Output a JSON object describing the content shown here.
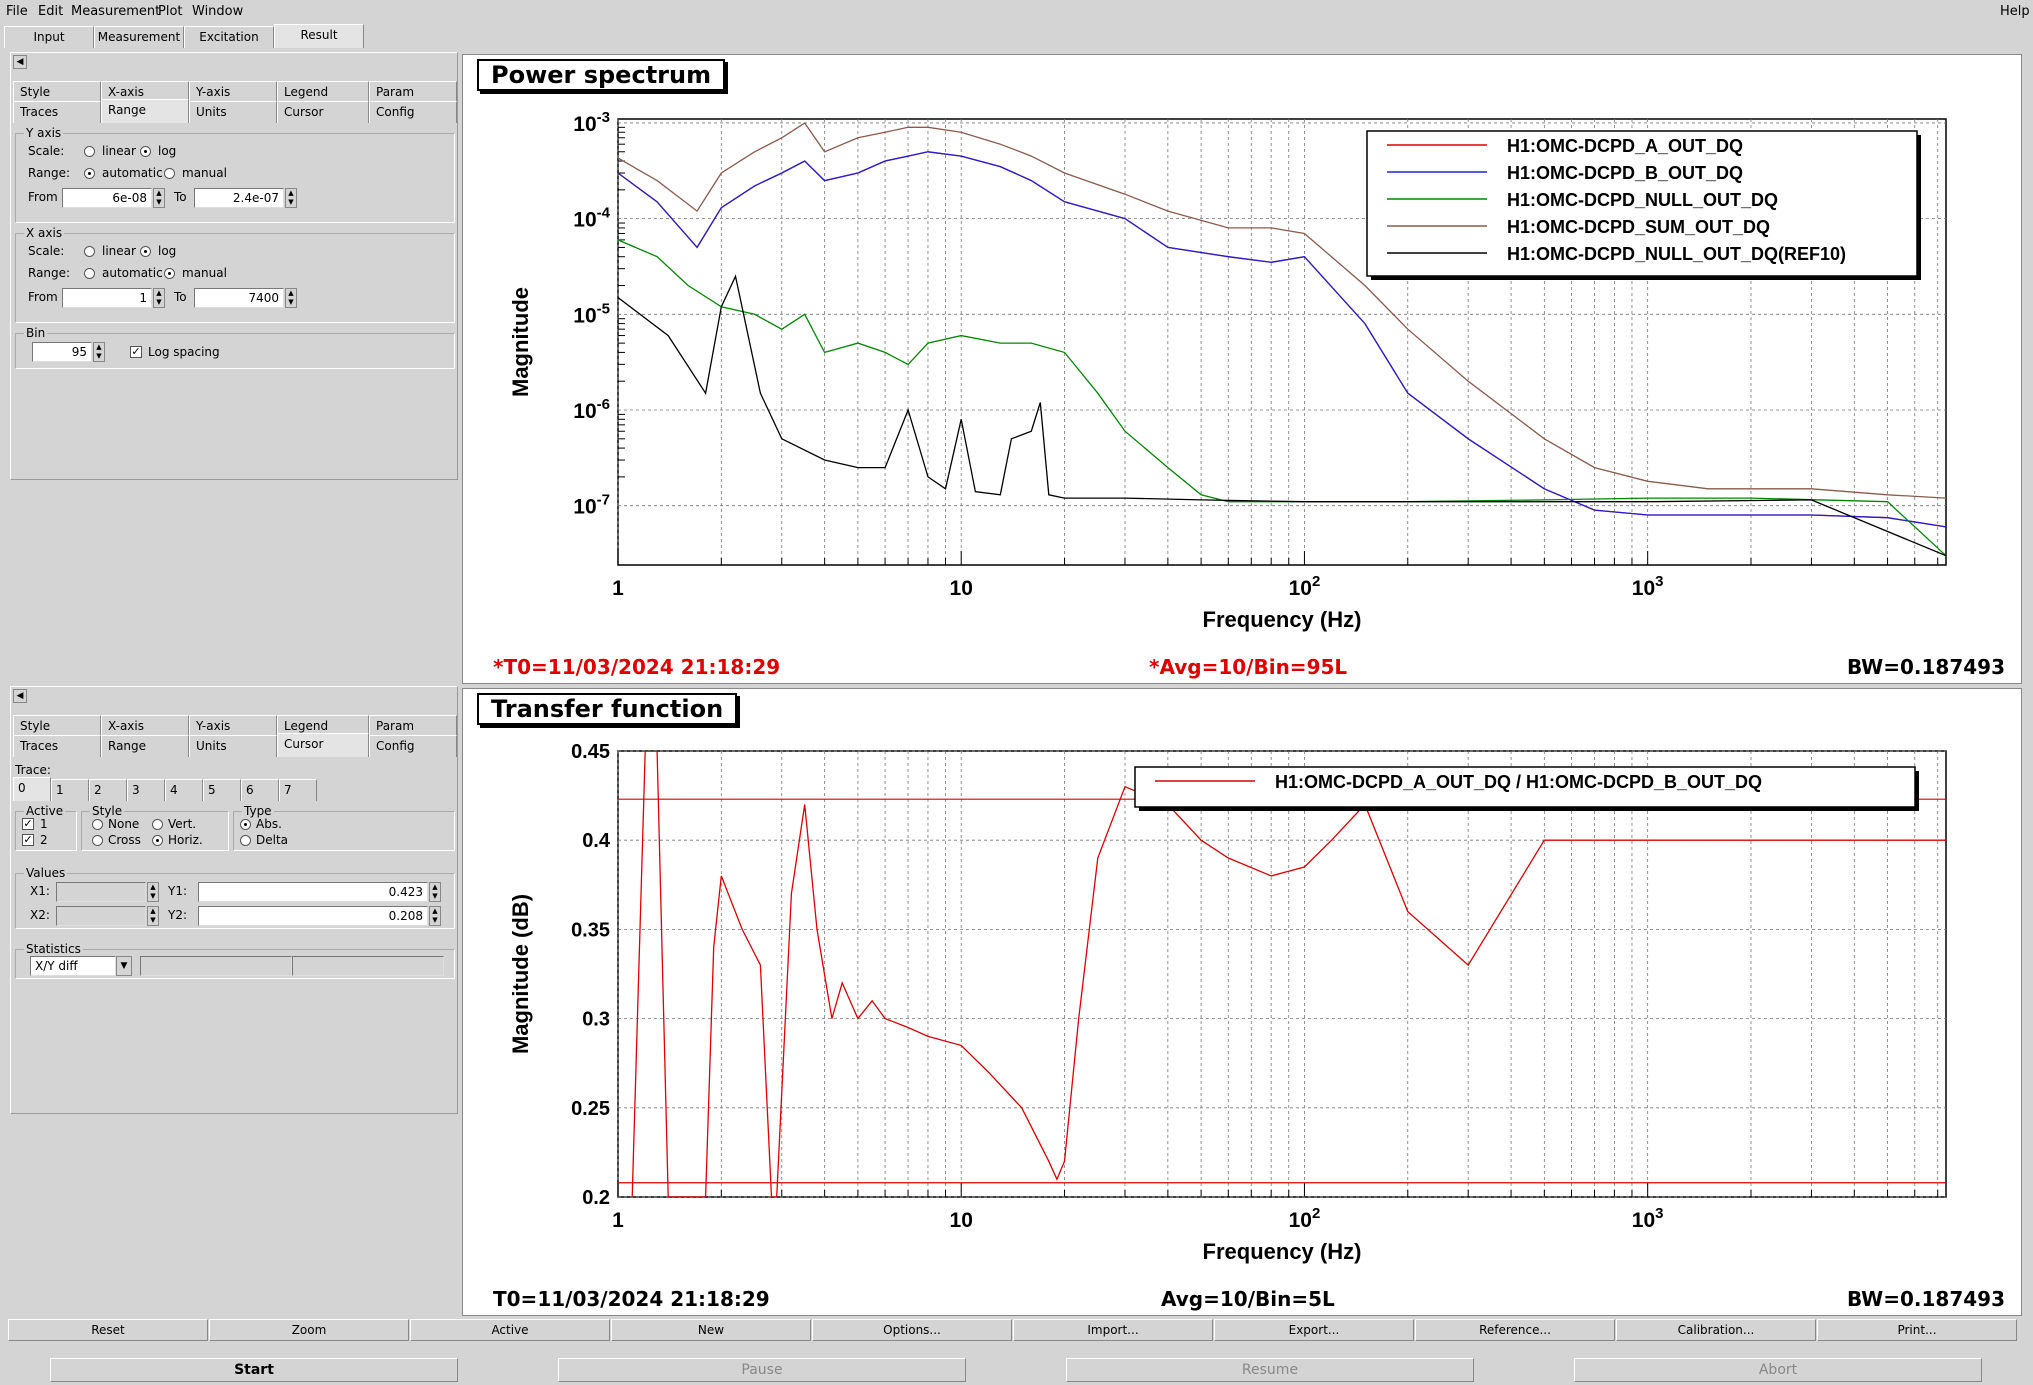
{
  "menu": [
    "File",
    "Edit",
    "Measurement",
    "Plot",
    "Window",
    "Help"
  ],
  "main_tabs": [
    "Input",
    "Measurement",
    "Excitation",
    "Result"
  ],
  "option_tabs_row1": [
    "Style",
    "X-axis",
    "Y-axis",
    "Legend",
    "Param"
  ],
  "option_tabs_row2": [
    "Traces",
    "Range",
    "Units",
    "Cursor",
    "Config"
  ],
  "range_panel": {
    "y_axis": {
      "title": "Y axis",
      "scale_label": "Scale:",
      "linear": "linear",
      "log": "log",
      "range_label": "Range:",
      "automatic": "automatic",
      "manual": "manual",
      "from_label": "From",
      "from": "6e-08",
      "to_label": "To",
      "to": "2.4e-07"
    },
    "x_axis": {
      "title": "X axis",
      "scale_label": "Scale:",
      "linear": "linear",
      "log": "log",
      "range_label": "Range:",
      "automatic": "automatic",
      "manual": "manual",
      "from_label": "From",
      "from": "1",
      "to_label": "To",
      "to": "7400"
    },
    "bin": {
      "title": "Bin",
      "value": "95",
      "log_spacing": "Log spacing"
    }
  },
  "cursor_panel": {
    "trace_label": "Trace:",
    "trace_tabs": [
      "0",
      "1",
      "2",
      "3",
      "4",
      "5",
      "6",
      "7"
    ],
    "active_title": "Active",
    "active_1": "1",
    "active_2": "2",
    "style_title": "Style",
    "style_none": "None",
    "style_vert": "Vert.",
    "style_cross": "Cross",
    "style_horiz": "Horiz.",
    "type_title": "Type",
    "type_abs": "Abs.",
    "type_delta": "Delta",
    "values_title": "Values",
    "x1_label": "X1:",
    "y1_label": "Y1:",
    "y1": "0.423",
    "x2_label": "X2:",
    "y2_label": "Y2:",
    "y2": "0.208",
    "stats_title": "Statistics",
    "stats_select": "X/Y diff"
  },
  "plot1": {
    "title": "Power spectrum",
    "t0": "*T0=11/03/2024 21:18:29",
    "avg": "*Avg=10/Bin=95L",
    "bw": "BW=0.187493",
    "legend": [
      {
        "name": "H1:OMC-DCPD_A_OUT_DQ",
        "color": "#e00000"
      },
      {
        "name": "H1:OMC-DCPD_B_OUT_DQ",
        "color": "#2020e0"
      },
      {
        "name": "H1:OMC-DCPD_NULL_OUT_DQ",
        "color": "#008800"
      },
      {
        "name": "H1:OMC-DCPD_SUM_OUT_DQ",
        "color": "#8b5a4a"
      },
      {
        "name": "H1:OMC-DCPD_NULL_OUT_DQ(REF10)",
        "color": "#000000"
      }
    ]
  },
  "plot2": {
    "title": "Transfer function",
    "t0": "T0=11/03/2024 21:18:29",
    "avg": "Avg=10/Bin=5L",
    "bw": "BW=0.187493",
    "legend": [
      {
        "name": "H1:OMC-DCPD_A_OUT_DQ / H1:OMC-DCPD_B_OUT_DQ",
        "color": "#e00000"
      }
    ]
  },
  "chart_data": [
    {
      "type": "line",
      "title": "Power spectrum",
      "xlabel": "Frequency (Hz)",
      "ylabel": "Magnitude",
      "xscale": "log",
      "yscale": "log",
      "xlim": [
        1,
        7400
      ],
      "ylim": [
        2.4e-08,
        0.0011
      ],
      "x_ticks": [
        "1",
        "10",
        "10^2",
        "10^3"
      ],
      "y_ticks": [
        "10^-7",
        "10^-6",
        "10^-5",
        "10^-4",
        "10^-3"
      ],
      "grid": true,
      "legend_position": "top-right",
      "series": [
        {
          "name": "H1:OMC-DCPD_SUM_OUT_DQ",
          "color": "#8b5a4a",
          "x": [
            1,
            1.3,
            1.7,
            2,
            2.5,
            3,
            3.5,
            4,
            5,
            6,
            7,
            8,
            10,
            13,
            16,
            20,
            30,
            40,
            60,
            80,
            100,
            150,
            200,
            300,
            500,
            700,
            1000,
            1500,
            2000,
            3000,
            5000,
            7400
          ],
          "y": [
            0.00043,
            0.00025,
            0.00012,
            0.0003,
            0.0005,
            0.0007,
            0.001,
            0.0005,
            0.0007,
            0.0008,
            0.0009,
            0.0009,
            0.0008,
            0.0006,
            0.00045,
            0.0003,
            0.00018,
            0.00012,
            8e-05,
            8e-05,
            7e-05,
            2e-05,
            7e-06,
            2e-06,
            5e-07,
            2.5e-07,
            1.8e-07,
            1.5e-07,
            1.5e-07,
            1.5e-07,
            1.3e-07,
            1.2e-07
          ]
        },
        {
          "name": "H1:OMC-DCPD_A_OUT_DQ",
          "color": "#e00000",
          "x": [
            1,
            1.3,
            1.7,
            2,
            2.5,
            3,
            3.5,
            4,
            5,
            6,
            7,
            8,
            10,
            13,
            16,
            20,
            30,
            40,
            60,
            80,
            100,
            150,
            200,
            300,
            500,
            700,
            1000,
            1500,
            2000,
            3000,
            5000,
            7400
          ],
          "y": [
            0.0003,
            0.00015,
            5e-05,
            0.00013,
            0.00022,
            0.0003,
            0.0004,
            0.00025,
            0.0003,
            0.0004,
            0.00045,
            0.0005,
            0.00045,
            0.00035,
            0.00025,
            0.00015,
            0.0001,
            5e-05,
            4e-05,
            3.5e-05,
            4e-05,
            8e-06,
            1.5e-06,
            5e-07,
            1.5e-07,
            9e-08,
            8e-08,
            8e-08,
            8e-08,
            8e-08,
            7.5e-08,
            6e-08
          ]
        },
        {
          "name": "H1:OMC-DCPD_B_OUT_DQ",
          "color": "#2020e0",
          "x": [
            1,
            1.3,
            1.7,
            2,
            2.5,
            3,
            3.5,
            4,
            5,
            6,
            7,
            8,
            10,
            13,
            16,
            20,
            30,
            40,
            60,
            80,
            100,
            150,
            200,
            300,
            500,
            700,
            1000,
            1500,
            2000,
            3000,
            5000,
            7400
          ],
          "y": [
            0.0003,
            0.00015,
            5e-05,
            0.00013,
            0.00022,
            0.0003,
            0.0004,
            0.00025,
            0.0003,
            0.0004,
            0.00045,
            0.0005,
            0.00045,
            0.00035,
            0.00025,
            0.00015,
            0.0001,
            5e-05,
            4e-05,
            3.5e-05,
            4e-05,
            8e-06,
            1.5e-06,
            5e-07,
            1.5e-07,
            9e-08,
            8e-08,
            8e-08,
            8e-08,
            8e-08,
            7.5e-08,
            6e-08
          ]
        },
        {
          "name": "H1:OMC-DCPD_NULL_OUT_DQ",
          "color": "#008800",
          "x": [
            1,
            1.3,
            1.6,
            2,
            2.5,
            3,
            3.5,
            4,
            5,
            6,
            7,
            8,
            10,
            13,
            16,
            20,
            25,
            30,
            40,
            50,
            60,
            80,
            100,
            200,
            500,
            1000,
            2000,
            5000,
            7400
          ],
          "y": [
            6e-05,
            4e-05,
            2e-05,
            1.2e-05,
            1e-05,
            7e-06,
            1e-05,
            4e-06,
            5e-06,
            4e-06,
            3e-06,
            5e-06,
            6e-06,
            5e-06,
            5e-06,
            4e-06,
            1.5e-06,
            6e-07,
            2.5e-07,
            1.3e-07,
            1.1e-07,
            1.1e-07,
            1.1e-07,
            1.1e-07,
            1.15e-07,
            1.2e-07,
            1.2e-07,
            1.1e-07,
            3e-08
          ]
        },
        {
          "name": "H1:OMC-DCPD_NULL_OUT_DQ(REF10)",
          "color": "#000000",
          "x": [
            1,
            1.4,
            1.8,
            2,
            2.2,
            2.6,
            3,
            4,
            5,
            6,
            7,
            8,
            9,
            10,
            11,
            13,
            14,
            16,
            17,
            18,
            20,
            30,
            50,
            100,
            300,
            1000,
            3000,
            7400
          ],
          "y": [
            1.5e-05,
            6e-06,
            1.5e-06,
            1.2e-05,
            2.5e-05,
            1.5e-06,
            5e-07,
            3e-07,
            2.5e-07,
            2.5e-07,
            1e-06,
            2e-07,
            1.5e-07,
            8e-07,
            1.4e-07,
            1.3e-07,
            5e-07,
            6e-07,
            1.2e-06,
            1.3e-07,
            1.2e-07,
            1.2e-07,
            1.15e-07,
            1.1e-07,
            1.1e-07,
            1.1e-07,
            1.15e-07,
            3e-08
          ]
        }
      ]
    },
    {
      "type": "line",
      "title": "Transfer function",
      "xlabel": "Frequency (Hz)",
      "ylabel": "Magnitude (dB)",
      "xscale": "log",
      "yscale": "linear",
      "xlim": [
        1,
        7400
      ],
      "ylim": [
        0.2,
        0.45
      ],
      "x_ticks": [
        "1",
        "10",
        "10^2",
        "10^3"
      ],
      "y_ticks": [
        "0.2",
        "0.25",
        "0.3",
        "0.35",
        "0.4",
        "0.45"
      ],
      "grid": true,
      "legend_position": "top-right",
      "cursors": [
        0.423,
        0.208
      ],
      "series": [
        {
          "name": "H1:OMC-DCPD_A_OUT_DQ / H1:OMC-DCPD_B_OUT_DQ",
          "color": "#e00000",
          "x": [
            1.1,
            1.2,
            1.3,
            1.4,
            1.8,
            1.9,
            2.0,
            2.3,
            2.6,
            2.8,
            2.9,
            3.2,
            3.5,
            3.8,
            4.2,
            4.5,
            5,
            5.5,
            6,
            7,
            8,
            10,
            12,
            15,
            18,
            19,
            20,
            22,
            25,
            30,
            40,
            50,
            60,
            80,
            100,
            120,
            150,
            200,
            300,
            500,
            1000,
            2000,
            5000,
            7400
          ],
          "y": [
            0.2,
            0.45,
            0.45,
            0.2,
            0.2,
            0.34,
            0.38,
            0.35,
            0.33,
            0.2,
            0.2,
            0.37,
            0.42,
            0.35,
            0.3,
            0.32,
            0.3,
            0.31,
            0.3,
            0.295,
            0.29,
            0.285,
            0.27,
            0.25,
            0.22,
            0.21,
            0.22,
            0.3,
            0.39,
            0.43,
            0.42,
            0.4,
            0.39,
            0.38,
            0.385,
            0.4,
            0.42,
            0.36,
            0.33,
            0.4,
            0.4,
            0.4,
            0.4,
            0.4
          ]
        }
      ]
    }
  ]
}
